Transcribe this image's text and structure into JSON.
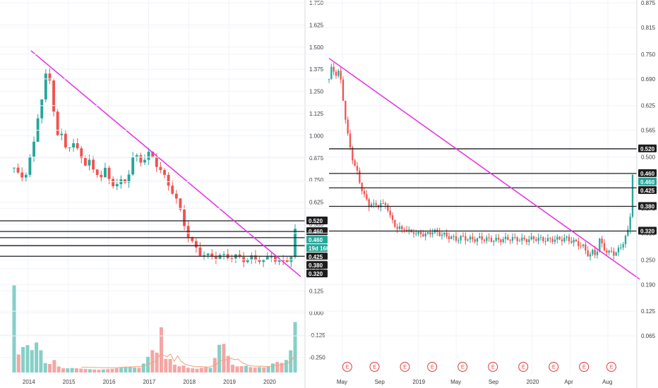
{
  "chart_data": [
    {
      "type": "candlestick",
      "panel": "left",
      "x_ticks": [
        "2014",
        "2015",
        "2016",
        "2017",
        "2018",
        "2019",
        "2020"
      ],
      "y_ticks": [
        "1.750",
        "1.625",
        "1.500",
        "1.375",
        "1.250",
        "1.125",
        "1.000",
        "0.875",
        "0.750",
        "0.625",
        "0.500",
        "0.375",
        "0.250",
        "0.125",
        "0.000",
        "-0.125",
        "-0.250"
      ],
      "ylim": [
        -0.28,
        1.75
      ],
      "price_path": [
        [
          0.0,
          0.82
        ],
        [
          0.02,
          0.76
        ],
        [
          0.04,
          0.78
        ],
        [
          0.05,
          0.84
        ],
        [
          0.07,
          0.95
        ],
        [
          0.08,
          1.05
        ],
        [
          0.09,
          1.18
        ],
        [
          0.1,
          1.22
        ],
        [
          0.11,
          1.33
        ],
        [
          0.12,
          1.36
        ],
        [
          0.13,
          1.28
        ],
        [
          0.14,
          1.16
        ],
        [
          0.15,
          1.05
        ],
        [
          0.16,
          0.96
        ],
        [
          0.17,
          1.0
        ],
        [
          0.18,
          0.92
        ],
        [
          0.19,
          0.97
        ],
        [
          0.2,
          0.94
        ],
        [
          0.21,
          0.96
        ],
        [
          0.22,
          0.9
        ],
        [
          0.23,
          0.93
        ],
        [
          0.24,
          0.88
        ],
        [
          0.25,
          0.85
        ],
        [
          0.26,
          0.83
        ],
        [
          0.27,
          0.86
        ],
        [
          0.28,
          0.8
        ],
        [
          0.29,
          0.81
        ],
        [
          0.3,
          0.78
        ],
        [
          0.31,
          0.77
        ],
        [
          0.32,
          0.82
        ],
        [
          0.33,
          0.78
        ],
        [
          0.34,
          0.75
        ],
        [
          0.35,
          0.73
        ],
        [
          0.36,
          0.73
        ],
        [
          0.37,
          0.72
        ],
        [
          0.38,
          0.74
        ],
        [
          0.39,
          0.73
        ],
        [
          0.4,
          0.76
        ],
        [
          0.41,
          0.8
        ],
        [
          0.42,
          0.86
        ],
        [
          0.43,
          0.9
        ],
        [
          0.44,
          0.87
        ],
        [
          0.45,
          0.86
        ],
        [
          0.46,
          0.88
        ],
        [
          0.47,
          0.86
        ],
        [
          0.48,
          0.9
        ],
        [
          0.49,
          0.88
        ],
        [
          0.5,
          0.86
        ],
        [
          0.51,
          0.83
        ],
        [
          0.52,
          0.81
        ],
        [
          0.53,
          0.77
        ],
        [
          0.54,
          0.76
        ],
        [
          0.55,
          0.72
        ],
        [
          0.56,
          0.7
        ],
        [
          0.57,
          0.66
        ],
        [
          0.58,
          0.63
        ],
        [
          0.59,
          0.58
        ],
        [
          0.6,
          0.53
        ],
        [
          0.61,
          0.48
        ],
        [
          0.62,
          0.43
        ],
        [
          0.63,
          0.4
        ],
        [
          0.64,
          0.38
        ],
        [
          0.65,
          0.36
        ],
        [
          0.66,
          0.34
        ],
        [
          0.67,
          0.33
        ],
        [
          0.68,
          0.325
        ],
        [
          0.69,
          0.32
        ],
        [
          0.7,
          0.322
        ],
        [
          0.71,
          0.318
        ],
        [
          0.72,
          0.32
        ],
        [
          0.73,
          0.322
        ],
        [
          0.74,
          0.318
        ],
        [
          0.75,
          0.32
        ],
        [
          0.76,
          0.318
        ],
        [
          0.77,
          0.32
        ],
        [
          0.78,
          0.315
        ],
        [
          0.79,
          0.318
        ],
        [
          0.8,
          0.31
        ],
        [
          0.81,
          0.305
        ],
        [
          0.82,
          0.3
        ],
        [
          0.83,
          0.305
        ],
        [
          0.84,
          0.3
        ],
        [
          0.85,
          0.32
        ],
        [
          0.86,
          0.3
        ],
        [
          0.87,
          0.3
        ],
        [
          0.88,
          0.31
        ],
        [
          0.89,
          0.29
        ],
        [
          0.9,
          0.3
        ],
        [
          0.91,
          0.32
        ],
        [
          0.92,
          0.33
        ],
        [
          0.93,
          0.3
        ],
        [
          0.94,
          0.29
        ],
        [
          0.95,
          0.28
        ],
        [
          0.96,
          0.29
        ],
        [
          0.97,
          0.3
        ],
        [
          0.98,
          0.31
        ],
        [
          0.99,
          0.33
        ],
        [
          1.0,
          0.46
        ]
      ],
      "volume_path": [
        [
          0.0,
          0.95
        ],
        [
          0.01,
          0.22
        ],
        [
          0.02,
          0.18
        ],
        [
          0.03,
          0.22
        ],
        [
          0.04,
          0.55
        ],
        [
          0.05,
          0.22
        ],
        [
          0.06,
          0.3
        ],
        [
          0.07,
          0.14
        ],
        [
          0.08,
          0.34
        ],
        [
          0.09,
          0.2
        ],
        [
          0.1,
          0.28
        ],
        [
          0.11,
          0.1
        ],
        [
          0.12,
          0.12
        ],
        [
          0.13,
          0.08
        ],
        [
          0.14,
          0.15
        ],
        [
          0.15,
          0.1
        ],
        [
          0.16,
          0.06
        ],
        [
          0.18,
          0.04
        ],
        [
          0.2,
          0.05
        ],
        [
          0.25,
          0.04
        ],
        [
          0.3,
          0.03
        ],
        [
          0.35,
          0.04
        ],
        [
          0.4,
          0.06
        ],
        [
          0.45,
          0.05
        ],
        [
          0.5,
          0.28
        ],
        [
          0.51,
          0.2
        ],
        [
          0.52,
          0.55
        ],
        [
          0.53,
          0.4
        ],
        [
          0.54,
          0.14
        ],
        [
          0.55,
          0.18
        ],
        [
          0.56,
          0.12
        ],
        [
          0.58,
          0.06
        ],
        [
          0.6,
          0.08
        ],
        [
          0.62,
          0.05
        ],
        [
          0.65,
          0.04
        ],
        [
          0.68,
          0.06
        ],
        [
          0.7,
          0.05
        ],
        [
          0.72,
          0.2
        ],
        [
          0.73,
          0.3
        ],
        [
          0.74,
          0.42
        ],
        [
          0.75,
          0.24
        ],
        [
          0.76,
          0.2
        ],
        [
          0.77,
          0.1
        ],
        [
          0.78,
          0.08
        ],
        [
          0.8,
          0.06
        ],
        [
          0.82,
          0.08
        ],
        [
          0.85,
          0.05
        ],
        [
          0.88,
          0.06
        ],
        [
          0.9,
          0.05
        ],
        [
          0.93,
          0.12
        ],
        [
          0.95,
          0.1
        ],
        [
          0.97,
          0.14
        ],
        [
          0.98,
          0.2
        ],
        [
          0.99,
          0.3
        ],
        [
          1.0,
          0.55
        ]
      ],
      "trendline": {
        "from": [
          0.06,
          1.48
        ],
        "to": [
          1.0,
          0.245
        ]
      },
      "horizontal_levels": [
        0.52,
        0.46,
        0.46,
        0.425,
        0.38,
        0.32
      ],
      "price_labels": [
        "0.520",
        "0.460",
        "0.460",
        "19d 16h",
        "0.425",
        "0.380",
        "0.320"
      ],
      "price_label_colors": [
        "#1e1e1e",
        "#1e1e1e",
        "#26a69a",
        "#26a69a",
        "#1e1e1e",
        "#1e1e1e",
        "#1e1e1e"
      ],
      "colors": {
        "up": "#26a69a",
        "down": "#ef5350",
        "up_volume": "#86cfc6",
        "down_volume": "#f4a6a4",
        "trendline": "#e62ee6",
        "level": "#1e1e1e",
        "ma": "#f0a27a"
      }
    },
    {
      "type": "candlestick",
      "panel": "right",
      "x_ticks": [
        "May",
        "Sep",
        "2019",
        "May",
        "Sep",
        "2020",
        "Apr",
        "Aug"
      ],
      "y_ticks": [
        "0.875",
        "0.815",
        "0.750",
        "0.690",
        "0.625",
        "0.565",
        "0.500",
        "0.440",
        "0.375",
        "0.315",
        "0.250",
        "0.190",
        "0.125",
        "0.065"
      ],
      "ylim": [
        0.0,
        0.875
      ],
      "price_path": [
        [
          0.0,
          0.69
        ],
        [
          0.01,
          0.72
        ],
        [
          0.02,
          0.7
        ],
        [
          0.03,
          0.71
        ],
        [
          0.04,
          0.68
        ],
        [
          0.05,
          0.62
        ],
        [
          0.06,
          0.56
        ],
        [
          0.07,
          0.52
        ],
        [
          0.08,
          0.49
        ],
        [
          0.09,
          0.47
        ],
        [
          0.1,
          0.44
        ],
        [
          0.11,
          0.42
        ],
        [
          0.12,
          0.4
        ],
        [
          0.13,
          0.38
        ],
        [
          0.14,
          0.39
        ],
        [
          0.15,
          0.38
        ],
        [
          0.16,
          0.38
        ],
        [
          0.17,
          0.39
        ],
        [
          0.18,
          0.38
        ],
        [
          0.19,
          0.385
        ],
        [
          0.2,
          0.36
        ],
        [
          0.21,
          0.34
        ],
        [
          0.22,
          0.33
        ],
        [
          0.23,
          0.33
        ],
        [
          0.24,
          0.32
        ],
        [
          0.25,
          0.33
        ],
        [
          0.26,
          0.32
        ],
        [
          0.27,
          0.315
        ],
        [
          0.28,
          0.32
        ],
        [
          0.29,
          0.31
        ],
        [
          0.3,
          0.315
        ],
        [
          0.32,
          0.31
        ],
        [
          0.34,
          0.32
        ],
        [
          0.36,
          0.315
        ],
        [
          0.38,
          0.31
        ],
        [
          0.4,
          0.305
        ],
        [
          0.42,
          0.3
        ],
        [
          0.44,
          0.305
        ],
        [
          0.46,
          0.3
        ],
        [
          0.48,
          0.3
        ],
        [
          0.5,
          0.302
        ],
        [
          0.52,
          0.3
        ],
        [
          0.55,
          0.298
        ],
        [
          0.58,
          0.3
        ],
        [
          0.6,
          0.302
        ],
        [
          0.62,
          0.3
        ],
        [
          0.64,
          0.298
        ],
        [
          0.66,
          0.3
        ],
        [
          0.68,
          0.302
        ],
        [
          0.7,
          0.3
        ],
        [
          0.72,
          0.298
        ],
        [
          0.74,
          0.3
        ],
        [
          0.76,
          0.3
        ],
        [
          0.78,
          0.302
        ],
        [
          0.8,
          0.296
        ],
        [
          0.82,
          0.29
        ],
        [
          0.84,
          0.28
        ],
        [
          0.85,
          0.265
        ],
        [
          0.86,
          0.262
        ],
        [
          0.87,
          0.27
        ],
        [
          0.88,
          0.26
        ],
        [
          0.89,
          0.3
        ],
        [
          0.9,
          0.285
        ],
        [
          0.91,
          0.275
        ],
        [
          0.92,
          0.265
        ],
        [
          0.93,
          0.27
        ],
        [
          0.94,
          0.265
        ],
        [
          0.95,
          0.27
        ],
        [
          0.96,
          0.28
        ],
        [
          0.97,
          0.295
        ],
        [
          0.98,
          0.31
        ],
        [
          0.99,
          0.33
        ],
        [
          1.0,
          0.46
        ]
      ],
      "trendline": {
        "from": [
          0.0,
          0.74
        ],
        "to": [
          1.0,
          0.22
        ]
      },
      "horizontal_levels": [
        0.52,
        0.46,
        0.425,
        0.38,
        0.32
      ],
      "price_labels": [
        "0.520",
        "0.460",
        "0.460",
        "0.425",
        "0.380",
        "0.320"
      ],
      "price_label_colors": [
        "#1e1e1e",
        "#1e1e1e",
        "#26a69a",
        "#1e1e1e",
        "#1e1e1e",
        "#1e1e1e"
      ],
      "earnings_label": "E",
      "earnings_positions": [
        0.06,
        0.15,
        0.25,
        0.34,
        0.44,
        0.54,
        0.64,
        0.74,
        0.84,
        0.93
      ],
      "colors": {
        "up": "#26a69a",
        "down": "#ef5350",
        "trendline": "#e62ee6",
        "level": "#1e1e1e",
        "earnings": "#e03b3b"
      }
    }
  ]
}
